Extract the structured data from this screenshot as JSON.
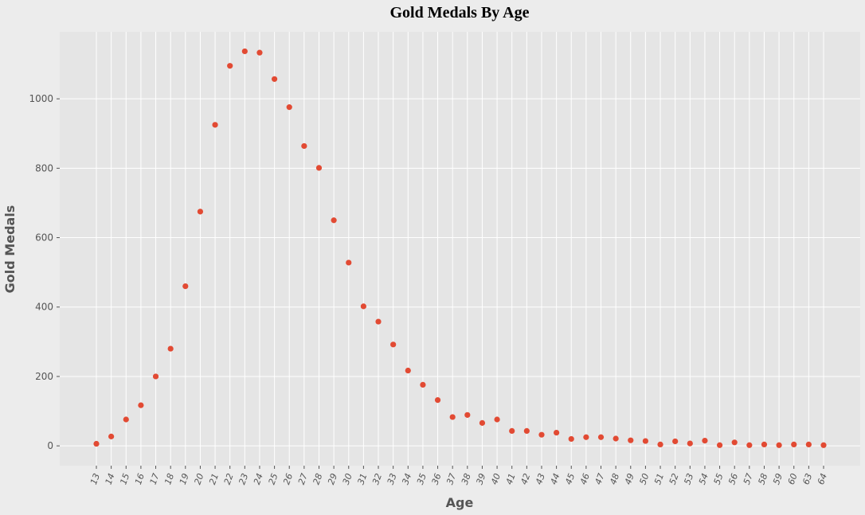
{
  "chart_data": {
    "type": "scatter",
    "title": "Gold Medals By Age",
    "xlabel": "Age",
    "ylabel": "Gold Medals",
    "categories": [
      "13",
      "14",
      "15",
      "16",
      "17",
      "18",
      "19",
      "20",
      "21",
      "22",
      "23",
      "24",
      "25",
      "26",
      "27",
      "28",
      "29",
      "30",
      "31",
      "32",
      "33",
      "34",
      "35",
      "36",
      "37",
      "38",
      "39",
      "40",
      "41",
      "42",
      "43",
      "44",
      "45",
      "46",
      "47",
      "48",
      "49",
      "50",
      "51",
      "52",
      "53",
      "54",
      "55",
      "56",
      "57",
      "58",
      "59",
      "60",
      "63",
      "64"
    ],
    "values": [
      6,
      27,
      76,
      117,
      200,
      280,
      460,
      675,
      925,
      1095,
      1137,
      1133,
      1057,
      976,
      864,
      801,
      650,
      528,
      402,
      358,
      292,
      217,
      176,
      132,
      83,
      89,
      66,
      76,
      43,
      43,
      32,
      38,
      20,
      25,
      25,
      21,
      16,
      14,
      4,
      13,
      7,
      15,
      2,
      10,
      2,
      4,
      2,
      4,
      4,
      2
    ],
    "ylim": [
      -57,
      1193
    ],
    "yticks": [
      0,
      200,
      400,
      600,
      800,
      1000
    ],
    "grid": true,
    "marker_color": "#e24a33",
    "background_color": "#e5e5e5",
    "grid_color": "#ffffff"
  }
}
